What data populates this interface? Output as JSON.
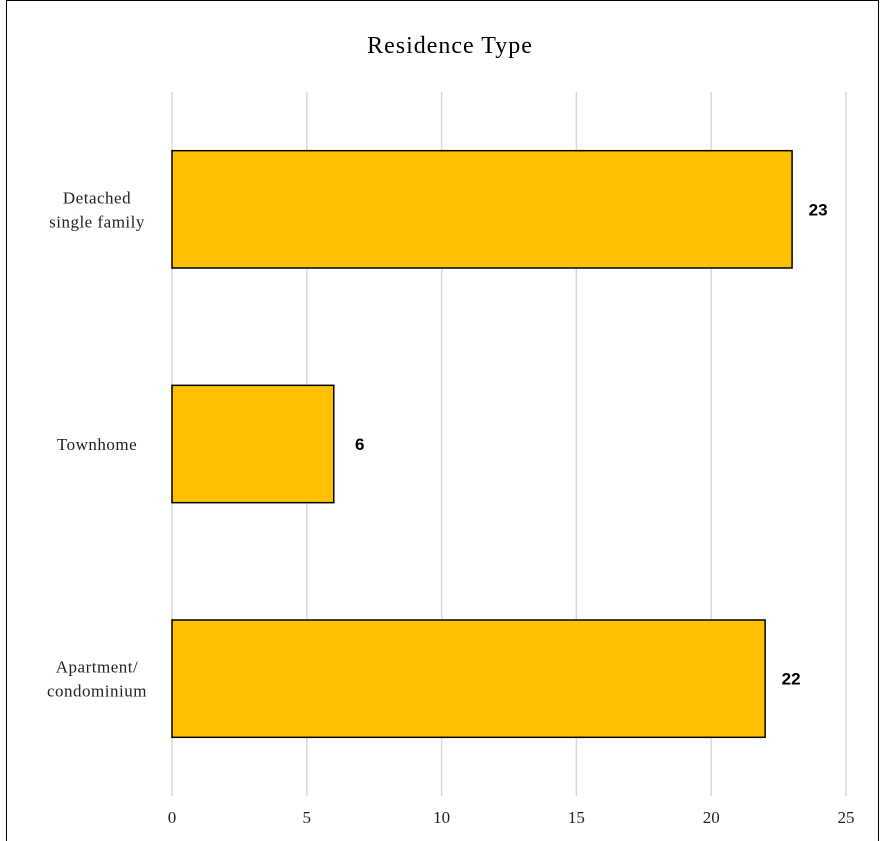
{
  "chart_data": {
    "type": "bar",
    "orientation": "horizontal",
    "title": "Residence Type",
    "categories": [
      [
        "Detached",
        "single family"
      ],
      [
        "Townhome"
      ],
      [
        "Apartment/",
        "condominium"
      ]
    ],
    "values": [
      23,
      6,
      22
    ],
    "xlim": [
      0,
      25
    ],
    "xticks": [
      0,
      5,
      10,
      15,
      20,
      25
    ],
    "grid": "vertical",
    "bar_color": "#FFC000",
    "legend": "none"
  }
}
